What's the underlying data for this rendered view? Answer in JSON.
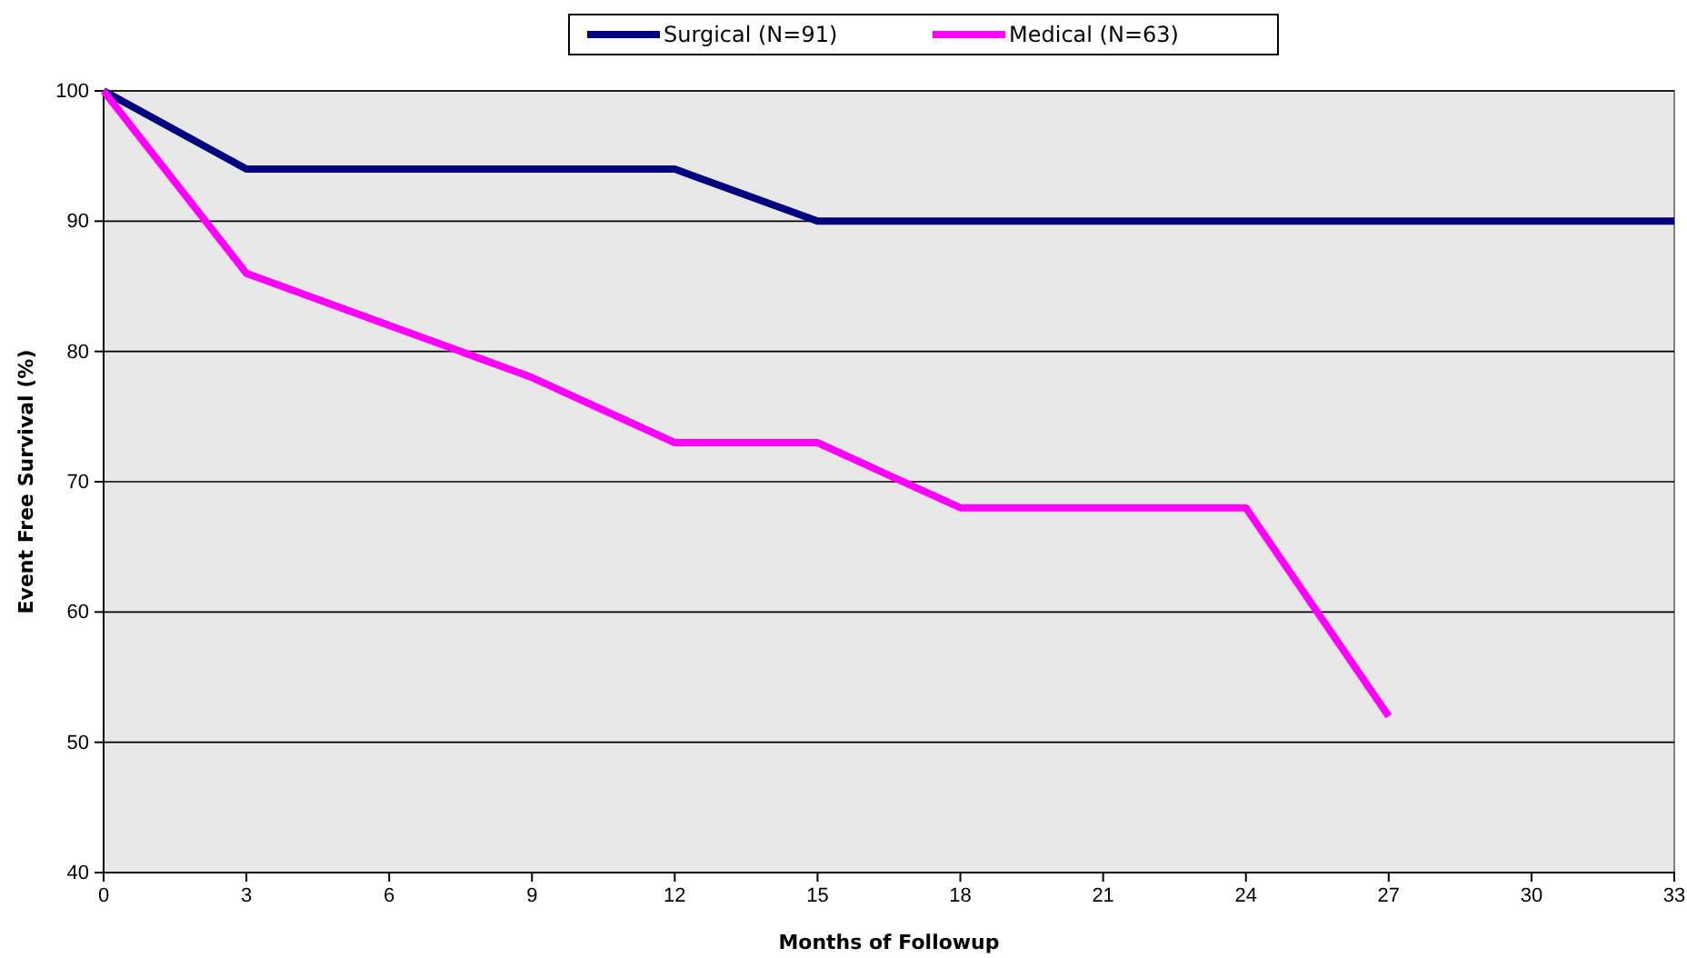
{
  "chart_data": {
    "type": "line",
    "xlabel": "Months of Followup",
    "ylabel": "Event Free Survival (%)",
    "x": [
      0,
      3,
      6,
      9,
      12,
      15,
      18,
      21,
      24,
      27,
      30,
      33
    ],
    "series": [
      {
        "name": "Surgical (N=91)",
        "color": "#000080",
        "values": [
          100,
          94,
          94,
          94,
          94,
          90,
          90,
          90,
          90,
          90,
          90,
          90
        ]
      },
      {
        "name": "Medical (N=63)",
        "color": "#ff00ff",
        "values": [
          100,
          86,
          82,
          78,
          73,
          73,
          68,
          68,
          68,
          52,
          null,
          null
        ]
      }
    ],
    "xlim": [
      0,
      33
    ],
    "xticks": [
      0,
      3,
      6,
      9,
      12,
      15,
      18,
      21,
      24,
      27,
      30,
      33
    ],
    "ylim": [
      40,
      100
    ],
    "yticks": [
      40,
      50,
      60,
      70,
      80,
      90,
      100
    ],
    "grid": "y",
    "legend": "top",
    "marker": "none",
    "line_style": "solid"
  }
}
